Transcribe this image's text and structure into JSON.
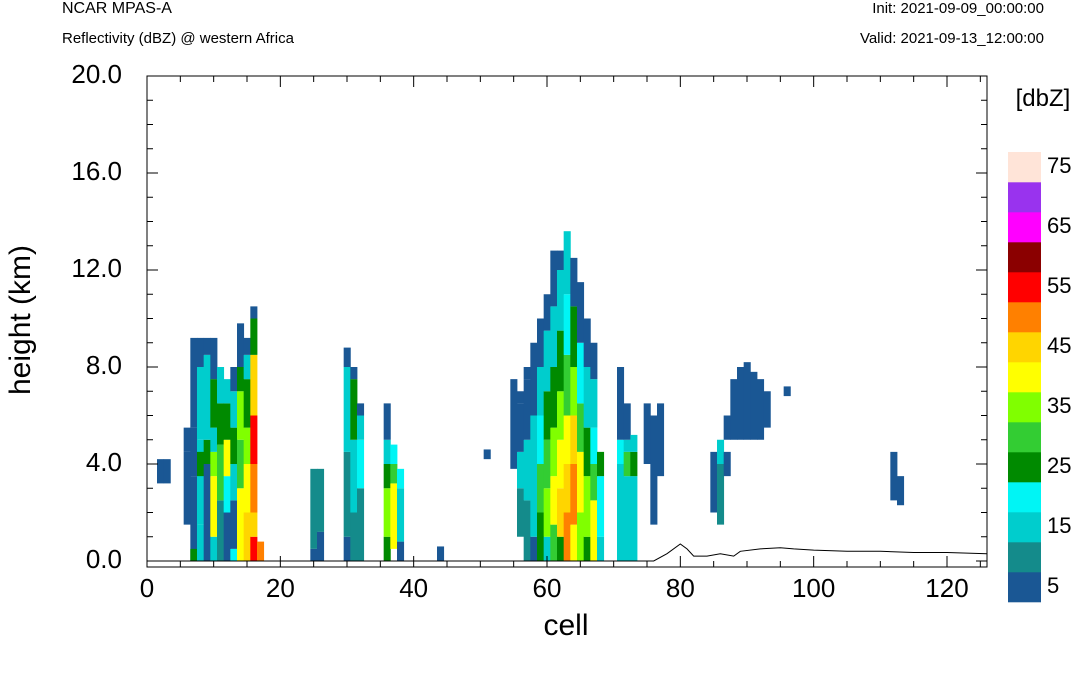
{
  "header": {
    "model": "NCAR MPAS-A",
    "field": "Reflectivity (dBZ) @ western Africa",
    "init": "Init: 2021-09-09_00:00:00",
    "valid": "Valid: 2021-09-13_12:00:00"
  },
  "chart_data": {
    "type": "heatmap",
    "xlabel": "cell",
    "ylabel": "height (km)",
    "xlim": [
      0,
      126
    ],
    "ylim": [
      0,
      20
    ],
    "x_ticks": [
      "0",
      "20",
      "40",
      "60",
      "80",
      "100",
      "120"
    ],
    "y_ticks": [
      "0.0",
      "4.0",
      "8.0",
      "12.0",
      "16.0",
      "20.0"
    ],
    "colorbar": {
      "label": "[dbZ]",
      "levels": [
        5,
        10,
        15,
        20,
        25,
        30,
        35,
        40,
        45,
        50,
        55,
        60,
        65,
        70,
        75
      ],
      "labels": [
        "5",
        "15",
        "25",
        "35",
        "45",
        "55",
        "65",
        "75"
      ],
      "colors": [
        "#1a5794",
        "#148b8b",
        "#00cdcd",
        "#00f5f5",
        "#008a00",
        "#33cd33",
        "#80ff00",
        "#ffff00",
        "#ffd500",
        "#ff8000",
        "#ff0000",
        "#8b0000",
        "#ff00ff",
        "#9933ee",
        "#ffe4d8"
      ]
    },
    "cells": [
      [
        2,
        3.2,
        4.2,
        5
      ],
      [
        3,
        3.2,
        4.2,
        5
      ],
      [
        6,
        1.5,
        4.5,
        5
      ],
      [
        6,
        4.5,
        5.5,
        5
      ],
      [
        7,
        0,
        3.5,
        5
      ],
      [
        7,
        3.5,
        5.5,
        5
      ],
      [
        7,
        5.5,
        9.2,
        5
      ],
      [
        7,
        0,
        0.5,
        25
      ],
      [
        8,
        0,
        1.5,
        15
      ],
      [
        8,
        1.5,
        5,
        15
      ],
      [
        8,
        5,
        8,
        15
      ],
      [
        8,
        8,
        9.2,
        5
      ],
      [
        8,
        3.5,
        4.5,
        25
      ],
      [
        9,
        0,
        4,
        5
      ],
      [
        9,
        4,
        5,
        25
      ],
      [
        9,
        5,
        8.5,
        15
      ],
      [
        9,
        8.5,
        9.2,
        5
      ],
      [
        10,
        0,
        1,
        15
      ],
      [
        10,
        1,
        3.5,
        40
      ],
      [
        10,
        3.5,
        4.5,
        35
      ],
      [
        10,
        4.5,
        5.5,
        15
      ],
      [
        10,
        5.5,
        7.5,
        25
      ],
      [
        10,
        7.5,
        9.2,
        5
      ],
      [
        11,
        0,
        2.5,
        10
      ],
      [
        11,
        2.5,
        4.8,
        30
      ],
      [
        11,
        4.8,
        6.5,
        25
      ],
      [
        11,
        6.5,
        8,
        15
      ],
      [
        12,
        0,
        2,
        5
      ],
      [
        12,
        2,
        3.5,
        20
      ],
      [
        12,
        3.5,
        5,
        40
      ],
      [
        12,
        5,
        6.5,
        25
      ],
      [
        12,
        6.5,
        7.5,
        15
      ],
      [
        13,
        0,
        0.5,
        20
      ],
      [
        13,
        0.5,
        2.5,
        5
      ],
      [
        13,
        2.5,
        4,
        15
      ],
      [
        13,
        4,
        5.5,
        25
      ],
      [
        13,
        5.5,
        7,
        15
      ],
      [
        13,
        7,
        8,
        5
      ],
      [
        14,
        0,
        3,
        40
      ],
      [
        14,
        3,
        5,
        30
      ],
      [
        14,
        5,
        7,
        35
      ],
      [
        14,
        7,
        8,
        25
      ],
      [
        14,
        8,
        9.8,
        5
      ],
      [
        15,
        0,
        2,
        45
      ],
      [
        15,
        2,
        4,
        40
      ],
      [
        15,
        4,
        5.5,
        35
      ],
      [
        15,
        5.5,
        7.5,
        25
      ],
      [
        15,
        7.5,
        8.5,
        15
      ],
      [
        15,
        8.5,
        9.2,
        5
      ],
      [
        16,
        0,
        1,
        55
      ],
      [
        16,
        1,
        2,
        45
      ],
      [
        16,
        2,
        4,
        50
      ],
      [
        16,
        4,
        6,
        55
      ],
      [
        16,
        6,
        8.5,
        45
      ],
      [
        16,
        8.5,
        10,
        25
      ],
      [
        16,
        10,
        10.5,
        5
      ],
      [
        17,
        0,
        0.8,
        50
      ],
      [
        25,
        0.5,
        3.8,
        10
      ],
      [
        25,
        0,
        0.5,
        5
      ],
      [
        26,
        1.2,
        3.8,
        10
      ],
      [
        26,
        0,
        1.2,
        5
      ],
      [
        30,
        0,
        1,
        5
      ],
      [
        30,
        1,
        4.5,
        10
      ],
      [
        30,
        4.5,
        8,
        15
      ],
      [
        30,
        8,
        8.8,
        5
      ],
      [
        31,
        0,
        2,
        10
      ],
      [
        31,
        2,
        5,
        15
      ],
      [
        31,
        5,
        7.5,
        25
      ],
      [
        31,
        7.5,
        8,
        5
      ],
      [
        32,
        0,
        3,
        10
      ],
      [
        32,
        3,
        5,
        20
      ],
      [
        32,
        5,
        6,
        15
      ],
      [
        32,
        6,
        6.5,
        5
      ],
      [
        36,
        0,
        1,
        25
      ],
      [
        36,
        1,
        3,
        35
      ],
      [
        36,
        3,
        4,
        25
      ],
      [
        36,
        4,
        5,
        15
      ],
      [
        36,
        5,
        6.5,
        5
      ],
      [
        37,
        0.5,
        3.2,
        40
      ],
      [
        37,
        3.2,
        4,
        30
      ],
      [
        37,
        4,
        4.8,
        20
      ],
      [
        38,
        0,
        0.8,
        5
      ],
      [
        38,
        0.8,
        3,
        15
      ],
      [
        38,
        3,
        3.8,
        20
      ],
      [
        44,
        0,
        0.6,
        5
      ],
      [
        51,
        4.2,
        4.6,
        5
      ],
      [
        55,
        3.8,
        7.5,
        5
      ],
      [
        56,
        1,
        3,
        10
      ],
      [
        56,
        3,
        4.5,
        15
      ],
      [
        56,
        4.5,
        6.5,
        5
      ],
      [
        56,
        6.5,
        7,
        5
      ],
      [
        57,
        0,
        2.5,
        10
      ],
      [
        57,
        2.5,
        5,
        15
      ],
      [
        57,
        5,
        7.5,
        5
      ],
      [
        57,
        7.5,
        8,
        5
      ],
      [
        58,
        0,
        1,
        5
      ],
      [
        58,
        1,
        4,
        15
      ],
      [
        58,
        4,
        6,
        15
      ],
      [
        58,
        6,
        9,
        5
      ],
      [
        59,
        0,
        2,
        25
      ],
      [
        59,
        2,
        4,
        30
      ],
      [
        59,
        4,
        6,
        20
      ],
      [
        59,
        6,
        8,
        15
      ],
      [
        59,
        8,
        10,
        5
      ],
      [
        60,
        0,
        1,
        15
      ],
      [
        60,
        1,
        3,
        35
      ],
      [
        60,
        3,
        5,
        30
      ],
      [
        60,
        5,
        7,
        25
      ],
      [
        60,
        7,
        9.5,
        15
      ],
      [
        60,
        9.5,
        11,
        5
      ],
      [
        61,
        0,
        1.5,
        30
      ],
      [
        61,
        1.5,
        3.5,
        40
      ],
      [
        61,
        3.5,
        5.5,
        35
      ],
      [
        61,
        5.5,
        8,
        25
      ],
      [
        61,
        8,
        10.5,
        15
      ],
      [
        61,
        10.5,
        12.8,
        5
      ],
      [
        62,
        0,
        1,
        25
      ],
      [
        62,
        1,
        3,
        45
      ],
      [
        62,
        3,
        5,
        40
      ],
      [
        62,
        5,
        7,
        35
      ],
      [
        62,
        7,
        9.5,
        25
      ],
      [
        62,
        9.5,
        12,
        15
      ],
      [
        62,
        12,
        12.8,
        5
      ],
      [
        63,
        0,
        2,
        50
      ],
      [
        63,
        2,
        4,
        45
      ],
      [
        63,
        4,
        6,
        40
      ],
      [
        63,
        6,
        8.5,
        30
      ],
      [
        63,
        8.5,
        11,
        20
      ],
      [
        63,
        11,
        13.6,
        15
      ],
      [
        64,
        0,
        1.5,
        40
      ],
      [
        64,
        1.5,
        4,
        50
      ],
      [
        64,
        4,
        6,
        45
      ],
      [
        64,
        6,
        8,
        35
      ],
      [
        64,
        8,
        10.5,
        25
      ],
      [
        64,
        10.5,
        12.5,
        5
      ],
      [
        65,
        0,
        2,
        35
      ],
      [
        65,
        2,
        4.5,
        40
      ],
      [
        65,
        4.5,
        6.5,
        30
      ],
      [
        65,
        6.5,
        9,
        20
      ],
      [
        65,
        9,
        11.5,
        5
      ],
      [
        66,
        0,
        1,
        25
      ],
      [
        66,
        1,
        3.5,
        35
      ],
      [
        66,
        3.5,
        5.5,
        25
      ],
      [
        66,
        5.5,
        8,
        15
      ],
      [
        66,
        8,
        10,
        5
      ],
      [
        67,
        0,
        2.5,
        40
      ],
      [
        67,
        2.5,
        4,
        30
      ],
      [
        67,
        4,
        5.5,
        20
      ],
      [
        67,
        5.5,
        7.5,
        15
      ],
      [
        67,
        7.5,
        9,
        5
      ],
      [
        68,
        0,
        1,
        15
      ],
      [
        68,
        1,
        3.5,
        20
      ],
      [
        68,
        3.5,
        4.5,
        25
      ],
      [
        71,
        0,
        4,
        15
      ],
      [
        71,
        4,
        5,
        20
      ],
      [
        71,
        5,
        8,
        5
      ],
      [
        72,
        0,
        3.5,
        15
      ],
      [
        72,
        3.5,
        4.5,
        30
      ],
      [
        72,
        4.5,
        5,
        15
      ],
      [
        72,
        5,
        6.5,
        5
      ],
      [
        73,
        0,
        3.5,
        15
      ],
      [
        73,
        3.5,
        4.5,
        25
      ],
      [
        73,
        4.5,
        5.2,
        15
      ],
      [
        75,
        4,
        6.5,
        5
      ],
      [
        76,
        1.5,
        6,
        5
      ],
      [
        77,
        3.5,
        6.5,
        5
      ],
      [
        85,
        2,
        4.5,
        5
      ],
      [
        86,
        1.5,
        4,
        10
      ],
      [
        86,
        4,
        5,
        15
      ],
      [
        87,
        3.5,
        4.5,
        5
      ],
      [
        87,
        5,
        6,
        5
      ],
      [
        88,
        5,
        7.5,
        5
      ],
      [
        89,
        5,
        8,
        5
      ],
      [
        90,
        5,
        8.2,
        5
      ],
      [
        91,
        5,
        7.8,
        5
      ],
      [
        92,
        5,
        7.5,
        5
      ],
      [
        93,
        5.5,
        7,
        5
      ],
      [
        96,
        6.8,
        7.2,
        5
      ],
      [
        112,
        2.5,
        4.5,
        5
      ],
      [
        113,
        2.3,
        3.5,
        5
      ]
    ],
    "terrain": [
      [
        0,
        0
      ],
      [
        76,
        0
      ],
      [
        78,
        0.3
      ],
      [
        80,
        0.7
      ],
      [
        81,
        0.5
      ],
      [
        82,
        0.2
      ],
      [
        84,
        0.2
      ],
      [
        86,
        0.3
      ],
      [
        88,
        0.2
      ],
      [
        89,
        0.4
      ],
      [
        92,
        0.5
      ],
      [
        95,
        0.55
      ],
      [
        97,
        0.5
      ],
      [
        100,
        0.45
      ],
      [
        105,
        0.4
      ],
      [
        110,
        0.4
      ],
      [
        115,
        0.35
      ],
      [
        120,
        0.35
      ],
      [
        126,
        0.3
      ]
    ]
  }
}
